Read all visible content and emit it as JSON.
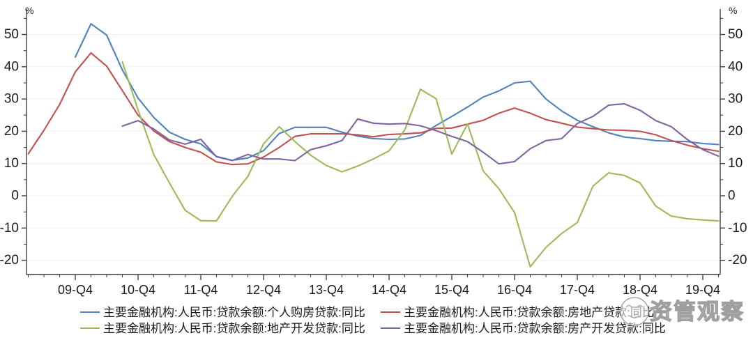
{
  "watermark": {
    "logo": "smiley-circle-icon",
    "text": "资管观察"
  },
  "axes": {
    "unit_left": "%",
    "unit_right": "%"
  },
  "chart_data": {
    "type": "line",
    "frequency": "quarterly",
    "x_start_label": "09-Q1",
    "n_points": 45,
    "x_tick_labels": [
      "09-Q4",
      "10-Q4",
      "11-Q4",
      "12-Q4",
      "13-Q4",
      "14-Q4",
      "15-Q4",
      "16-Q4",
      "17-Q4",
      "18-Q4",
      "19-Q4"
    ],
    "y_ticks": [
      -20,
      -10,
      0,
      10,
      20,
      30,
      40,
      50
    ],
    "y_minor_step": 5,
    "ylim": [
      -24.4,
      57.9
    ],
    "grid": "faint-horizontal",
    "legend_position": "bottom",
    "background": "#ffffff",
    "series": [
      {
        "name": "主要金融机构:人民币:贷款余额:个人购房贷款:同比",
        "key": "personal-housing-loans",
        "color": "#4F81BD",
        "start_index": 3,
        "values": [
          43.0,
          53.3,
          49.8,
          39.0,
          30.3,
          24.3,
          19.7,
          17.5,
          16.1,
          12.2,
          11.0,
          11.7,
          14.0,
          19.3,
          21.2,
          21.2,
          21.2,
          19.7,
          18.5,
          17.7,
          17.5,
          17.6,
          18.7,
          21.8,
          24.6,
          27.5,
          30.6,
          32.5,
          35.0,
          35.5,
          30.0,
          26.3,
          23.4,
          21.4,
          19.5,
          18.2,
          17.7,
          17.1,
          16.9,
          16.8,
          16.2,
          15.9
        ]
      },
      {
        "name": "主要金融机构:人民币:贷款余额:房地产贷款:同比",
        "key": "real-estate-loans",
        "color": "#C0504D",
        "start_index": 0,
        "values": [
          13.0,
          20.3,
          28.3,
          38.4,
          44.3,
          40.2,
          32.6,
          25.0,
          20.1,
          16.8,
          15.0,
          13.5,
          10.5,
          9.7,
          9.9,
          12.0,
          15.0,
          18.4,
          19.2,
          19.2,
          19.2,
          18.9,
          18.3,
          19.0,
          19.2,
          19.5,
          20.9,
          21.0,
          22.2,
          23.4,
          25.6,
          27.2,
          25.6,
          23.6,
          22.5,
          21.3,
          20.8,
          20.4,
          20.3,
          20.0,
          18.9,
          17.1,
          15.7,
          14.6,
          13.8
        ]
      },
      {
        "name": "主要金融机构:人民币:贷款余额:地产开发贷款:同比",
        "key": "land-development-loans",
        "color": "#9BBB59",
        "start_index": 6,
        "values": [
          41.5,
          26.6,
          12.8,
          4.0,
          -4.5,
          -7.7,
          -7.8,
          -0.2,
          6.0,
          16.1,
          21.4,
          16.8,
          12.6,
          9.4,
          7.4,
          9.2,
          11.4,
          13.9,
          20.4,
          33.0,
          30.1,
          12.9,
          22.3,
          7.7,
          2.2,
          -5.2,
          -22.0,
          -16.0,
          -11.7,
          -8.3,
          3.0,
          7.1,
          6.3,
          4.0,
          -3.2,
          -6.3,
          -7.1,
          -7.5,
          -7.8
        ]
      },
      {
        "name": "主要金融机构:人民币:贷款余额:房产开发贷款:同比",
        "key": "housing-development-loans",
        "color": "#8064A2",
        "start_index": 6,
        "values": [
          21.6,
          23.3,
          20.7,
          17.3,
          16.0,
          17.5,
          12.1,
          10.9,
          12.8,
          11.4,
          11.4,
          10.9,
          14.3,
          15.5,
          17.1,
          23.8,
          22.5,
          22.2,
          22.4,
          21.7,
          20.2,
          18.4,
          16.8,
          13.5,
          9.9,
          10.6,
          14.6,
          17.1,
          17.7,
          22.4,
          24.6,
          28.1,
          28.5,
          26.5,
          23.3,
          21.4,
          17.5,
          14.3,
          12.3
        ]
      }
    ]
  }
}
